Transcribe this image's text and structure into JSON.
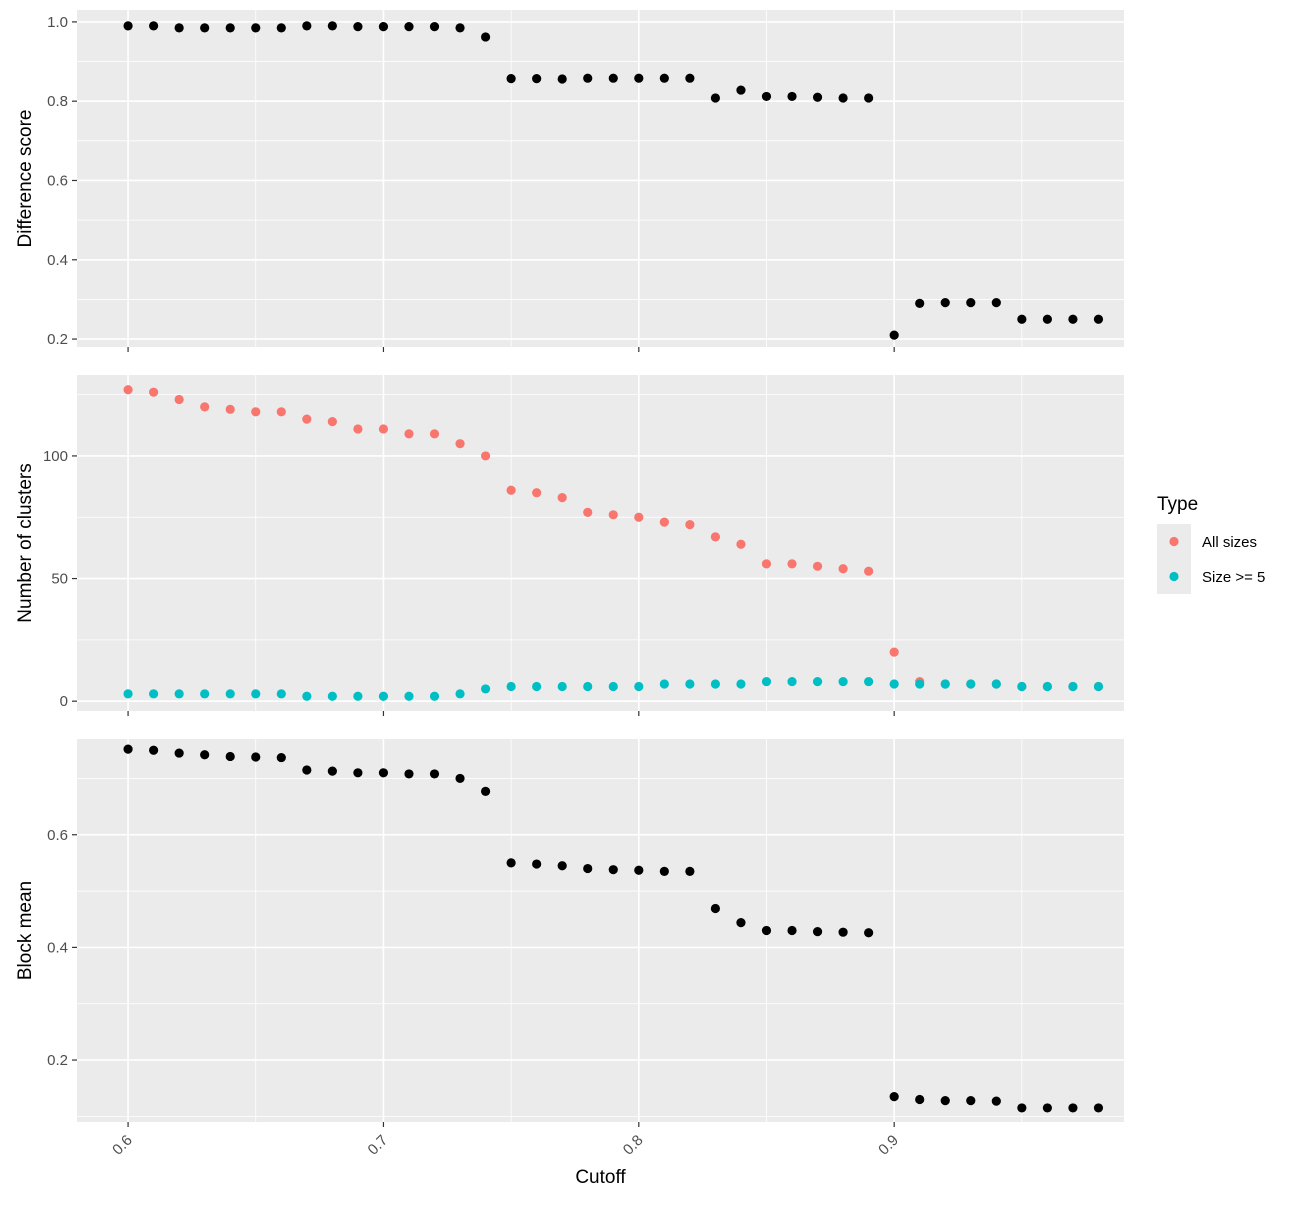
{
  "chart_data": {
    "type": "scatter",
    "facet_layout": "vertical, shared x axis",
    "xlabel": "Cutoff",
    "x_ticks": [
      "0.6",
      "0.7",
      "0.8",
      "0.9"
    ],
    "xlim": [
      0.58,
      0.99
    ],
    "grid": true,
    "x": [
      0.6,
      0.61,
      0.62,
      0.63,
      0.64,
      0.65,
      0.66,
      0.67,
      0.68,
      0.69,
      0.7,
      0.71,
      0.72,
      0.73,
      0.74,
      0.75,
      0.76,
      0.77,
      0.78,
      0.79,
      0.8,
      0.81,
      0.82,
      0.83,
      0.84,
      0.85,
      0.86,
      0.87,
      0.88,
      0.89,
      0.9,
      0.91,
      0.92,
      0.93,
      0.94,
      0.95,
      0.96,
      0.97,
      0.98
    ],
    "panels": [
      {
        "ylabel": "Difference score",
        "ylim": [
          0.18,
          1.03
        ],
        "y_ticks": [
          "0.2",
          "0.4",
          "0.6",
          "0.8",
          "1.0"
        ],
        "series": [
          {
            "color": "#000000",
            "values": [
              0.99,
              0.99,
              0.985,
              0.985,
              0.985,
              0.985,
              0.985,
              0.99,
              0.99,
              0.988,
              0.988,
              0.988,
              0.988,
              0.985,
              0.962,
              0.857,
              0.857,
              0.856,
              0.858,
              0.858,
              0.858,
              0.858,
              0.858,
              0.808,
              0.828,
              0.812,
              0.812,
              0.81,
              0.808,
              0.808,
              0.21,
              0.29,
              0.292,
              0.292,
              0.292,
              0.25,
              0.25,
              0.25,
              0.25
            ]
          }
        ]
      },
      {
        "ylabel": "Number of clusters",
        "ylim": [
          -4,
          133
        ],
        "y_ticks": [
          "0",
          "50",
          "100"
        ],
        "series": [
          {
            "name": "All sizes",
            "color": "#f8766d",
            "values": [
              127,
              126,
              123,
              120,
              119,
              118,
              118,
              115,
              114,
              111,
              111,
              109,
              109,
              105,
              100,
              86,
              85,
              83,
              77,
              76,
              75,
              73,
              72,
              67,
              64,
              56,
              56,
              55,
              54,
              53,
              20,
              8,
              7,
              7,
              7,
              6,
              6,
              6,
              6
            ]
          },
          {
            "name": "Size >= 5",
            "color": "#00bfc4",
            "values": [
              3,
              3,
              3,
              3,
              3,
              3,
              3,
              2,
              2,
              2,
              2,
              2,
              2,
              3,
              5,
              6,
              6,
              6,
              6,
              6,
              6,
              7,
              7,
              7,
              7,
              8,
              8,
              8,
              8,
              8,
              7,
              7,
              7,
              7,
              7,
              6,
              6,
              6,
              6
            ]
          }
        ]
      },
      {
        "ylabel": "Block mean",
        "ylim": [
          0.09,
          0.77
        ],
        "y_ticks": [
          "0.2",
          "0.4",
          "0.6"
        ],
        "series": [
          {
            "color": "#000000",
            "values": [
              0.752,
              0.75,
              0.745,
              0.742,
              0.739,
              0.738,
              0.737,
              0.715,
              0.713,
              0.71,
              0.71,
              0.708,
              0.708,
              0.7,
              0.677,
              0.55,
              0.548,
              0.545,
              0.54,
              0.538,
              0.537,
              0.535,
              0.535,
              0.469,
              0.444,
              0.43,
              0.43,
              0.428,
              0.427,
              0.426,
              0.135,
              0.13,
              0.128,
              0.128,
              0.127,
              0.115,
              0.115,
              0.115,
              0.115
            ]
          }
        ]
      }
    ],
    "legend": {
      "title": "Type",
      "position": "right",
      "items": [
        {
          "label": "All sizes",
          "color": "#f8766d"
        },
        {
          "label": "Size >= 5",
          "color": "#00bfc4"
        }
      ]
    }
  }
}
